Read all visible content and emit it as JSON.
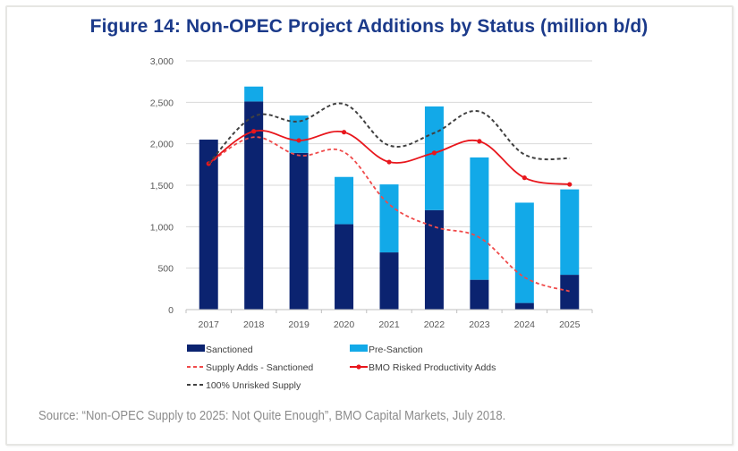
{
  "figure": {
    "title": "Figure 14: Non-OPEC Project Additions by Status (million b/d)",
    "source": "Source: “Non-OPEC Supply to 2025: Not Quite Enough”, BMO Capital Markets, July 2018."
  },
  "colors": {
    "title": "#1b3a8a",
    "sanctioned": "#0b2370",
    "pre_sanction": "#12a9e8",
    "supply_adds_sanctioned": "#f04a4a",
    "bmo_risked": "#e8161c",
    "unrisked": "#404040",
    "gridline": "#d9d9d9",
    "axis": "#bfbfbf",
    "source_text": "#8c8c8c"
  },
  "chart_data": {
    "type": "bar",
    "stacked": true,
    "title": "Figure 14: Non-OPEC Project Additions by Status (million b/d)",
    "xlabel": "",
    "ylabel": "",
    "categories": [
      "2017",
      "2018",
      "2019",
      "2020",
      "2021",
      "2022",
      "2023",
      "2024",
      "2025"
    ],
    "ylim": [
      0,
      3000
    ],
    "yticks": [
      0,
      500,
      1000,
      1500,
      2000,
      2500,
      3000
    ],
    "ytick_labels": [
      "0",
      "500",
      "1,000",
      "1,500",
      "2,000",
      "2,500",
      "3,000"
    ],
    "grid": true,
    "legend_position": "bottom",
    "series": [
      {
        "name": "Sanctioned",
        "kind": "bar",
        "values": [
          2050,
          2510,
          1890,
          1030,
          690,
          1200,
          360,
          80,
          420
        ]
      },
      {
        "name": "Pre-Sanction",
        "kind": "bar",
        "values": [
          0,
          180,
          450,
          570,
          820,
          1250,
          1475,
          1210,
          1030
        ]
      },
      {
        "name": "Supply Adds - Sanctioned",
        "kind": "line",
        "style": "dashed-red",
        "values": [
          1760,
          2080,
          1860,
          1900,
          1270,
          1000,
          870,
          390,
          220
        ]
      },
      {
        "name": "BMO Risked Productivity Adds",
        "kind": "line",
        "style": "solid-red-markers",
        "values": [
          1760,
          2150,
          2040,
          2140,
          1780,
          1890,
          2030,
          1590,
          1510
        ]
      },
      {
        "name": "100% Unrisked Supply",
        "kind": "line",
        "style": "dashed-black",
        "values": [
          1760,
          2330,
          2270,
          2480,
          1980,
          2130,
          2390,
          1870,
          1825
        ]
      }
    ],
    "legend": [
      {
        "label": "Sanctioned",
        "swatch": "box",
        "color_key": "sanctioned"
      },
      {
        "label": "Pre-Sanction",
        "swatch": "box",
        "color_key": "pre_sanction"
      },
      {
        "label": "Supply Adds - Sanctioned",
        "swatch": "dash",
        "color_key": "supply_adds_sanctioned"
      },
      {
        "label": "BMO Risked Productivity Adds",
        "swatch": "line-marker",
        "color_key": "bmo_risked"
      },
      {
        "label": "100% Unrisked Supply",
        "swatch": "dash",
        "color_key": "unrisked"
      }
    ]
  }
}
